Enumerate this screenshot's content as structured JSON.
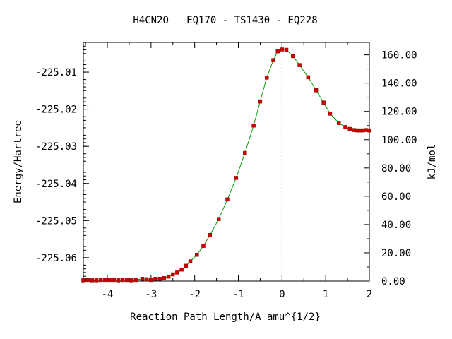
{
  "chart_data": {
    "type": "line",
    "title": "H4CN2O   EQ170 - TS1430 - EQ228",
    "xlabel": "Reaction Path Length/A amu^{1/2}",
    "ylabel": "Energy/Hartree",
    "y2label": "kJ/mol",
    "xlim": [
      -4.55,
      2.0
    ],
    "ylim": [
      -225.0663,
      -225.002
    ],
    "y2lim": [
      0.0,
      168.8
    ],
    "x_ticks": [
      -4,
      -3,
      -2,
      -1,
      0,
      1,
      2
    ],
    "x_tick_labels": [
      "-4",
      "-3",
      "-2",
      "-1",
      "0",
      "1",
      "2"
    ],
    "y_ticks": [
      -225.01,
      -225.02,
      -225.03,
      -225.04,
      -225.05,
      -225.06
    ],
    "y_tick_labels": [
      "-225.01",
      "-225.02",
      "-225.03",
      "-225.04",
      "-225.05",
      "-225.06"
    ],
    "y2_ticks": [
      0,
      20,
      40,
      60,
      80,
      100,
      120,
      140,
      160
    ],
    "y2_tick_labels": [
      "0.00",
      "20.00",
      "40.00",
      "60.00",
      "80.00",
      "100.00",
      "120.00",
      "140.00",
      "160.00"
    ],
    "ts_marker_x": 0.0,
    "line_color": "#00a000",
    "marker_color": "#cc0000",
    "ts_line_color": "#888888",
    "series": [
      {
        "x": [
          -4.55,
          -4.45,
          -4.35,
          -4.25,
          -4.15,
          -4.05,
          -3.95,
          -3.85,
          -3.75,
          -3.65,
          -3.55,
          -3.45,
          -3.35,
          -3.2,
          -3.1,
          -3.0,
          -2.9,
          -2.8,
          -2.7,
          -2.6,
          -2.5,
          -2.4,
          -2.3,
          -2.2,
          -2.1,
          -1.95,
          -1.8,
          -1.65,
          -1.45,
          -1.25,
          -1.05,
          -0.85,
          -0.65,
          -0.5,
          -0.35,
          -0.2,
          -0.1,
          0.0,
          0.1,
          0.25,
          0.4,
          0.6,
          0.78,
          0.95,
          1.1,
          1.3,
          1.45,
          1.55,
          1.65,
          1.72,
          1.78,
          1.85,
          1.92,
          2.0
        ],
        "y": [
          -225.0661,
          -225.066,
          -225.0661,
          -225.0661,
          -225.066,
          -225.066,
          -225.066,
          -225.066,
          -225.0661,
          -225.066,
          -225.066,
          -225.0661,
          -225.066,
          -225.0657,
          -225.0658,
          -225.066,
          -225.0657,
          -225.0657,
          -225.0655,
          -225.0651,
          -225.0645,
          -225.064,
          -225.0632,
          -225.0622,
          -225.061,
          -225.0592,
          -225.0568,
          -225.0539,
          -225.0496,
          -225.0443,
          -225.0385,
          -225.0318,
          -225.0244,
          -225.0179,
          -225.0115,
          -225.0068,
          -225.0044,
          -225.0039,
          -225.004,
          -225.0057,
          -225.0081,
          -225.0114,
          -225.0149,
          -225.0182,
          -225.0212,
          -225.0237,
          -225.0248,
          -225.0253,
          -225.0256,
          -225.0257,
          -225.0257,
          -225.0257,
          -225.0256,
          -225.0257
        ]
      }
    ]
  }
}
